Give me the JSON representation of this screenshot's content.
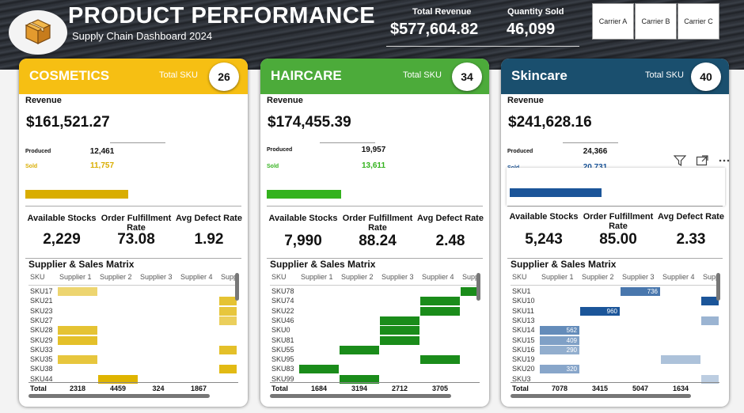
{
  "header": {
    "title": "PRODUCT PERFORMANCE",
    "subtitle": "Supply Chain Dashboard 2024",
    "total_revenue_label": "Total Revenue",
    "total_revenue_value": "$577,604.82",
    "quantity_sold_label": "Quantity Sold",
    "quantity_sold_value": "46,099",
    "carriers": [
      "Carrier A",
      "Carrier B",
      "Carrier C"
    ]
  },
  "colors": {
    "cosmetics_head": "#f6bf13",
    "haircare_head": "#4cab3a",
    "skincare_head": "#1a4f6e",
    "cosmetics_bar": "#d9ad00",
    "haircare_bar": "#33b21d",
    "skincare_bar": "#1b5599"
  },
  "cards": [
    {
      "name": "COSMETICS",
      "total_sku_label": "Total SKU",
      "total_sku": "26",
      "revenue_label": "Revenue",
      "revenue": "$161,521.27",
      "produced_label": "Produced",
      "produced": "12,461",
      "sold_label": "Sold",
      "sold": "11,757",
      "sold_fraction": 0.94,
      "metrics": [
        {
          "label": "Available Stocks",
          "value": "2,229"
        },
        {
          "label": "Order Fulfillment Rate",
          "value": "73.08"
        },
        {
          "label": "Avg Defect Rate",
          "value": "1.92"
        }
      ],
      "matrix": {
        "title": "Supplier & Sales Matrix",
        "columns": [
          "SKU",
          "Supplier 1",
          "Supplier 2",
          "Supplier 3",
          "Supplier 4",
          "Supp"
        ],
        "rows": [
          {
            "sku": "SKU17",
            "cells": [
              {
                "col": 1,
                "level": 0.45,
                "text": ""
              }
            ]
          },
          {
            "sku": "SKU21",
            "cells": [
              {
                "col": 5,
                "level": 0.75,
                "text": ""
              }
            ]
          },
          {
            "sku": "SKU23",
            "cells": [
              {
                "col": 5,
                "level": 0.7,
                "text": ""
              }
            ]
          },
          {
            "sku": "SKU27",
            "cells": [
              {
                "col": 5,
                "level": 0.55,
                "text": ""
              }
            ]
          },
          {
            "sku": "SKU28",
            "cells": [
              {
                "col": 1,
                "level": 0.75,
                "text": ""
              }
            ]
          },
          {
            "sku": "SKU29",
            "cells": [
              {
                "col": 1,
                "level": 0.8,
                "text": ""
              }
            ]
          },
          {
            "sku": "SKU33",
            "cells": [
              {
                "col": 5,
                "level": 0.8,
                "text": ""
              }
            ]
          },
          {
            "sku": "SKU35",
            "cells": [
              {
                "col": 1,
                "level": 0.7,
                "text": ""
              }
            ]
          },
          {
            "sku": "SKU38",
            "cells": [
              {
                "col": 5,
                "level": 0.9,
                "text": ""
              }
            ]
          },
          {
            "sku": "SKU44",
            "cells": [
              {
                "col": 2,
                "level": 1.0,
                "text": ""
              }
            ]
          }
        ],
        "total_label": "Total",
        "totals": [
          "2318",
          "4459",
          "324",
          "1867"
        ]
      }
    },
    {
      "name": "HAIRCARE",
      "total_sku_label": "Total SKU",
      "total_sku": "34",
      "revenue_label": "Revenue",
      "revenue": "$174,455.39",
      "produced_label": "Produced",
      "produced": "19,957",
      "sold_label": "Sold",
      "sold": "13,611",
      "sold_fraction": 0.68,
      "metrics": [
        {
          "label": "Available Stocks",
          "value": "7,990"
        },
        {
          "label": "Order Fulfillment Rate",
          "value": "88.24"
        },
        {
          "label": "Avg Defect Rate",
          "value": "2.48"
        }
      ],
      "matrix": {
        "title": "Supplier & Sales Matrix",
        "columns": [
          "SKU",
          "Supplier 1",
          "Supplier 2",
          "Supplier 3",
          "Supplier 4",
          "Supp"
        ],
        "rows": [
          {
            "sku": "SKU78",
            "cells": [
              {
                "col": 5,
                "level": 1.0,
                "text": ""
              }
            ]
          },
          {
            "sku": "SKU74",
            "cells": [
              {
                "col": 4,
                "level": 1.0,
                "text": ""
              }
            ]
          },
          {
            "sku": "SKU22",
            "cells": [
              {
                "col": 4,
                "level": 1.0,
                "text": ""
              }
            ]
          },
          {
            "sku": "SKU46",
            "cells": [
              {
                "col": 3,
                "level": 1.0,
                "text": ""
              }
            ]
          },
          {
            "sku": "SKU0",
            "cells": [
              {
                "col": 3,
                "level": 1.0,
                "text": ""
              }
            ]
          },
          {
            "sku": "SKU81",
            "cells": [
              {
                "col": 3,
                "level": 1.0,
                "text": ""
              }
            ]
          },
          {
            "sku": "SKU55",
            "cells": [
              {
                "col": 2,
                "level": 1.0,
                "text": ""
              }
            ]
          },
          {
            "sku": "SKU95",
            "cells": [
              {
                "col": 4,
                "level": 1.0,
                "text": ""
              }
            ]
          },
          {
            "sku": "SKU83",
            "cells": [
              {
                "col": 1,
                "level": 1.0,
                "text": ""
              }
            ]
          },
          {
            "sku": "SKU99",
            "cells": [
              {
                "col": 2,
                "level": 1.0,
                "text": ""
              }
            ]
          }
        ],
        "total_label": "Total",
        "totals": [
          "1684",
          "3194",
          "2712",
          "3705"
        ]
      }
    },
    {
      "name": "Skincare",
      "total_sku_label": "Total SKU",
      "total_sku": "40",
      "revenue_label": "Revenue",
      "revenue": "$241,628.16",
      "produced_label": "Produced",
      "produced": "24,366",
      "sold_label": "Sold",
      "sold": "20,731",
      "sold_fraction": 0.85,
      "metrics": [
        {
          "label": "Available Stocks",
          "value": "5,243"
        },
        {
          "label": "Order Fulfillment Rate",
          "value": "85.00"
        },
        {
          "label": "Avg Defect Rate",
          "value": "2.33"
        }
      ],
      "matrix": {
        "title": "Supplier & Sales Matrix",
        "columns": [
          "SKU",
          "Supplier 1",
          "Supplier 2",
          "Supplier 3",
          "Supplier 4",
          "Supp"
        ],
        "rows": [
          {
            "sku": "SKU1",
            "cells": [
              {
                "col": 3,
                "level": 0.75,
                "text": "736"
              }
            ]
          },
          {
            "sku": "SKU10",
            "cells": [
              {
                "col": 5,
                "level": 1.0,
                "text": ""
              }
            ]
          },
          {
            "sku": "SKU11",
            "cells": [
              {
                "col": 2,
                "level": 1.0,
                "text": "960"
              }
            ]
          },
          {
            "sku": "SKU13",
            "cells": [
              {
                "col": 5,
                "level": 0.3,
                "text": ""
              }
            ]
          },
          {
            "sku": "SKU14",
            "cells": [
              {
                "col": 1,
                "level": 0.6,
                "text": "562"
              }
            ]
          },
          {
            "sku": "SKU15",
            "cells": [
              {
                "col": 1,
                "level": 0.45,
                "text": "409"
              }
            ]
          },
          {
            "sku": "SKU16",
            "cells": [
              {
                "col": 1,
                "level": 0.35,
                "text": "290"
              }
            ]
          },
          {
            "sku": "SKU19",
            "cells": [
              {
                "col": 4,
                "level": 0.2,
                "text": ""
              }
            ]
          },
          {
            "sku": "SKU20",
            "cells": [
              {
                "col": 1,
                "level": 0.4,
                "text": "320"
              }
            ]
          },
          {
            "sku": "SKU3",
            "cells": [
              {
                "col": 5,
                "level": 0.12,
                "text": ""
              }
            ]
          }
        ],
        "total_label": "Total",
        "totals": [
          "7078",
          "3415",
          "5047",
          "1634"
        ]
      }
    }
  ],
  "visual_controls": {
    "icons": [
      "filter-icon",
      "focus-mode-icon",
      "more-options-icon"
    ]
  }
}
